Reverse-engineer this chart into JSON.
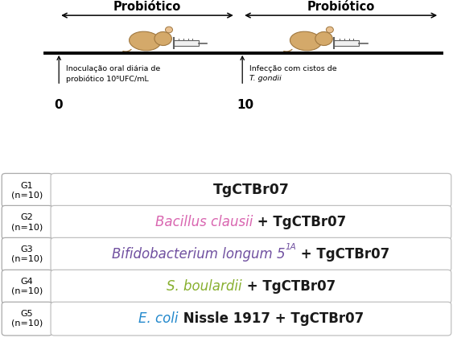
{
  "bg_color": "#ffffff",
  "title_top_left": "Probiótico",
  "title_top_right": "Probiótico",
  "arrow1_label_line1": "Inoculação oral diária de",
  "arrow1_label_line2": "probiótico 10⁸UFC/mL",
  "arrow2_label_line1": "Infecção com cistos de",
  "arrow2_label_line2": "T. gondii",
  "day0": "0",
  "day10": "10",
  "groups": [
    {
      "label": "G1\n(n=10)",
      "parts": [
        {
          "text": "TgCTBr07",
          "color": "#1a1a1a",
          "style": "normal",
          "weight": "bold",
          "size": 12.5,
          "super": false
        }
      ]
    },
    {
      "label": "G2\n(n=10)",
      "parts": [
        {
          "text": "Bacillus clausii",
          "color": "#d966b0",
          "style": "italic",
          "weight": "normal",
          "size": 12,
          "super": false
        },
        {
          "text": " + TgCTBr07",
          "color": "#1a1a1a",
          "style": "normal",
          "weight": "bold",
          "size": 12,
          "super": false
        }
      ]
    },
    {
      "label": "G3\n(n=10)",
      "parts": [
        {
          "text": "Bifidobacterium longum 5",
          "color": "#7050a0",
          "style": "italic",
          "weight": "normal",
          "size": 12,
          "super": false
        },
        {
          "text": "1A",
          "color": "#7050a0",
          "style": "italic",
          "weight": "normal",
          "size": 7.5,
          "super": true
        },
        {
          "text": " + TgCTBr07",
          "color": "#1a1a1a",
          "style": "normal",
          "weight": "bold",
          "size": 12,
          "super": false
        }
      ]
    },
    {
      "label": "G4\n(n=10)",
      "parts": [
        {
          "text": "S. boulardii",
          "color": "#88b030",
          "style": "italic",
          "weight": "normal",
          "size": 12,
          "super": false
        },
        {
          "text": " + TgCTBr07",
          "color": "#1a1a1a",
          "style": "normal",
          "weight": "bold",
          "size": 12,
          "super": false
        }
      ]
    },
    {
      "label": "G5\n(n=10)",
      "parts": [
        {
          "text": "E. coli",
          "color": "#2288cc",
          "style": "italic",
          "weight": "normal",
          "size": 12,
          "super": false
        },
        {
          "text": " Nissle 1917 + TgCTBr07",
          "color": "#1a1a1a",
          "style": "normal",
          "weight": "bold",
          "size": 12,
          "super": false
        }
      ]
    }
  ],
  "box_facecolor": "#ffffff",
  "box_edgecolor": "#c0c0c0",
  "label_edgecolor": "#aaaaaa",
  "annotation_fontsize": 6.8,
  "label_fontsize": 8.0
}
